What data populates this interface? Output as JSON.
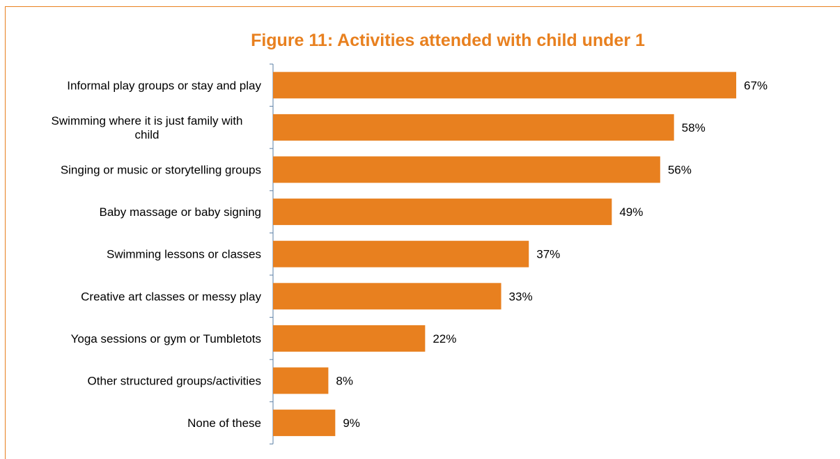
{
  "colors": {
    "accent": "#e8801f",
    "bar": "#e8801f",
    "text": "#000000",
    "axis": "#5b7fa6"
  },
  "chart_data": {
    "type": "bar",
    "orientation": "horizontal",
    "title": "Figure 11: Activities attended with child under 1",
    "xlabel": "",
    "ylabel": "",
    "value_suffix": "%",
    "xlim": [
      0,
      75
    ],
    "grid": false,
    "legend": "none",
    "categories": [
      [
        "Informal play groups or stay and play"
      ],
      [
        "Swimming where it is just family with",
        "child"
      ],
      [
        "Singing or music or storytelling groups"
      ],
      [
        "Baby massage or baby signing"
      ],
      [
        "Swimming lessons or classes"
      ],
      [
        "Creative art classes or messy play"
      ],
      [
        "Yoga sessions or gym or Tumbletots"
      ],
      [
        "Other structured groups/activities"
      ],
      [
        "None of these"
      ]
    ],
    "values": [
      67,
      58,
      56,
      49,
      37,
      33,
      22,
      8,
      9
    ],
    "data_labels": [
      "67%",
      "58%",
      "56%",
      "49%",
      "37%",
      "33%",
      "22%",
      "8%",
      "9%"
    ]
  }
}
